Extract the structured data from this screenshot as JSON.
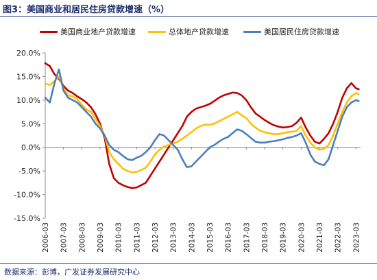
{
  "header": {
    "title": "图3：美国商业和居民住房贷款增速（%）"
  },
  "footer": {
    "source": "数据来源：彭博，广发证券发展研究中心"
  },
  "colors": {
    "commercial": "#c00000",
    "total": "#ffc000",
    "residential": "#4a7ebb",
    "frame": "#2f3e8f"
  },
  "chart_data": {
    "type": "line",
    "title": "图3：美国商业和居民住房贷款增速（%）",
    "ylabel": "",
    "xlabel": "",
    "ylim": [
      -15,
      20
    ],
    "yticks": [
      -15,
      -10,
      -5,
      0,
      5,
      10,
      15,
      20
    ],
    "ytick_labels": [
      "-15.0%",
      "-10.0%",
      "-5.0%",
      "0.0%",
      "5.0%",
      "10.0%",
      "15.0%",
      "20.0%"
    ],
    "xlim": [
      2006.0,
      2023.25
    ],
    "xticks": [
      2006,
      2007,
      2008,
      2009,
      2010,
      2011,
      2012,
      2013,
      2014,
      2015,
      2016,
      2017,
      2018,
      2019,
      2020,
      2021,
      2022,
      2023
    ],
    "xtick_labels": [
      "2006-03",
      "2007-03",
      "2008-03",
      "2009-03",
      "2010-03",
      "2011-03",
      "2012-03",
      "2013-03",
      "2014-03",
      "2015-03",
      "2016-03",
      "2017-03",
      "2018-03",
      "2019-03",
      "2020-03",
      "2021-03",
      "2022-03",
      "2023-03"
    ],
    "grid": false,
    "legend_position": "top",
    "series": [
      {
        "name": "美国商业地产贷款增速",
        "color": "#c00000",
        "x": [
          2006.0,
          2006.25,
          2006.5,
          2006.75,
          2007.0,
          2007.25,
          2007.5,
          2007.75,
          2008.0,
          2008.25,
          2008.5,
          2008.75,
          2009.0,
          2009.25,
          2009.5,
          2009.75,
          2010.0,
          2010.25,
          2010.5,
          2010.75,
          2011.0,
          2011.25,
          2011.5,
          2011.75,
          2012.0,
          2012.25,
          2012.5,
          2012.75,
          2013.0,
          2013.25,
          2013.5,
          2013.75,
          2014.0,
          2014.25,
          2014.5,
          2014.75,
          2015.0,
          2015.25,
          2015.5,
          2015.75,
          2016.0,
          2016.25,
          2016.5,
          2016.75,
          2017.0,
          2017.25,
          2017.5,
          2017.75,
          2018.0,
          2018.25,
          2018.5,
          2018.75,
          2019.0,
          2019.25,
          2019.5,
          2019.75,
          2020.0,
          2020.25,
          2020.5,
          2020.75,
          2021.0,
          2021.25,
          2021.5,
          2021.75,
          2022.0,
          2022.25,
          2022.5,
          2022.75,
          2023.0,
          2023.15
        ],
        "values": [
          17.8,
          17.2,
          15.5,
          14.5,
          13.0,
          12.0,
          11.5,
          10.8,
          10.2,
          9.5,
          8.5,
          7.0,
          5.0,
          2.0,
          -3.5,
          -6.5,
          -7.5,
          -8.0,
          -8.4,
          -8.6,
          -8.5,
          -8.0,
          -7.5,
          -6.0,
          -4.5,
          -3.0,
          -1.5,
          0.0,
          1.5,
          3.0,
          4.5,
          6.5,
          7.5,
          8.2,
          8.5,
          8.8,
          9.2,
          9.8,
          10.5,
          11.0,
          11.3,
          11.6,
          11.5,
          11.0,
          10.0,
          8.5,
          7.2,
          6.5,
          5.8,
          5.2,
          4.7,
          4.4,
          4.2,
          4.3,
          4.5,
          5.2,
          6.3,
          4.2,
          2.5,
          1.2,
          0.8,
          1.8,
          3.0,
          5.0,
          7.5,
          10.5,
          12.5,
          13.6,
          12.5,
          12.3
        ]
      },
      {
        "name": "总体地产贷款增速",
        "color": "#ffc000",
        "x": [
          2006.0,
          2006.25,
          2006.5,
          2006.75,
          2007.0,
          2007.25,
          2007.5,
          2007.75,
          2008.0,
          2008.25,
          2008.5,
          2008.75,
          2009.0,
          2009.25,
          2009.5,
          2009.75,
          2010.0,
          2010.25,
          2010.5,
          2010.75,
          2011.0,
          2011.25,
          2011.5,
          2011.75,
          2012.0,
          2012.25,
          2012.5,
          2012.75,
          2013.0,
          2013.25,
          2013.5,
          2013.75,
          2014.0,
          2014.25,
          2014.5,
          2014.75,
          2015.0,
          2015.25,
          2015.5,
          2015.75,
          2016.0,
          2016.25,
          2016.5,
          2016.75,
          2017.0,
          2017.25,
          2017.5,
          2017.75,
          2018.0,
          2018.25,
          2018.5,
          2018.75,
          2019.0,
          2019.25,
          2019.5,
          2019.75,
          2020.0,
          2020.25,
          2020.5,
          2020.75,
          2021.0,
          2021.25,
          2021.5,
          2021.75,
          2022.0,
          2022.25,
          2022.5,
          2022.75,
          2023.0,
          2023.15
        ],
        "values": [
          13.5,
          13.2,
          14.0,
          15.0,
          12.5,
          11.0,
          10.8,
          10.2,
          9.0,
          8.0,
          7.5,
          6.0,
          4.5,
          2.5,
          -1.0,
          -2.5,
          -3.5,
          -4.5,
          -5.0,
          -5.3,
          -5.2,
          -4.8,
          -4.3,
          -3.0,
          -1.5,
          -0.5,
          0.2,
          0.5,
          0.8,
          1.2,
          1.8,
          2.5,
          3.2,
          4.0,
          4.5,
          4.8,
          4.8,
          5.0,
          5.5,
          6.0,
          6.5,
          7.0,
          7.5,
          6.8,
          6.2,
          5.0,
          4.2,
          3.5,
          3.2,
          3.0,
          2.8,
          2.8,
          3.0,
          3.2,
          3.3,
          3.5,
          4.5,
          2.5,
          1.0,
          0.0,
          -0.5,
          -0.3,
          0.5,
          2.5,
          5.0,
          7.5,
          9.5,
          10.8,
          11.5,
          11.2
        ]
      },
      {
        "name": "美国居民住房贷款增速",
        "color": "#4a7ebb",
        "x": [
          2006.0,
          2006.25,
          2006.5,
          2006.75,
          2007.0,
          2007.25,
          2007.5,
          2007.75,
          2008.0,
          2008.25,
          2008.5,
          2008.75,
          2009.0,
          2009.25,
          2009.5,
          2009.75,
          2010.0,
          2010.25,
          2010.5,
          2010.75,
          2011.0,
          2011.25,
          2011.5,
          2011.75,
          2012.0,
          2012.25,
          2012.5,
          2012.75,
          2013.0,
          2013.25,
          2013.5,
          2013.75,
          2014.0,
          2014.25,
          2014.5,
          2014.75,
          2015.0,
          2015.25,
          2015.5,
          2015.75,
          2016.0,
          2016.25,
          2016.5,
          2016.75,
          2017.0,
          2017.25,
          2017.5,
          2017.75,
          2018.0,
          2018.25,
          2018.5,
          2018.75,
          2019.0,
          2019.25,
          2019.5,
          2019.75,
          2020.0,
          2020.25,
          2020.5,
          2020.75,
          2021.0,
          2021.25,
          2021.5,
          2021.75,
          2022.0,
          2022.25,
          2022.5,
          2022.75,
          2023.0,
          2023.15
        ],
        "values": [
          10.5,
          9.5,
          13.5,
          16.5,
          12.0,
          10.5,
          10.0,
          9.5,
          8.5,
          7.5,
          6.5,
          5.0,
          4.0,
          2.5,
          0.5,
          -0.5,
          -1.0,
          -1.8,
          -2.5,
          -2.7,
          -2.2,
          -1.8,
          -1.0,
          0.0,
          1.5,
          2.8,
          2.5,
          1.5,
          0.5,
          -0.5,
          -2.5,
          -4.2,
          -4.0,
          -3.0,
          -2.0,
          -1.0,
          0.0,
          0.5,
          1.2,
          1.8,
          2.2,
          3.0,
          3.8,
          3.5,
          2.8,
          2.0,
          1.2,
          1.0,
          1.0,
          1.2,
          1.3,
          1.5,
          1.7,
          2.0,
          2.2,
          2.5,
          3.0,
          1.0,
          -1.5,
          -3.0,
          -3.5,
          -3.8,
          -2.5,
          0.5,
          3.5,
          6.5,
          8.5,
          9.5,
          10.0,
          9.8
        ]
      }
    ]
  }
}
